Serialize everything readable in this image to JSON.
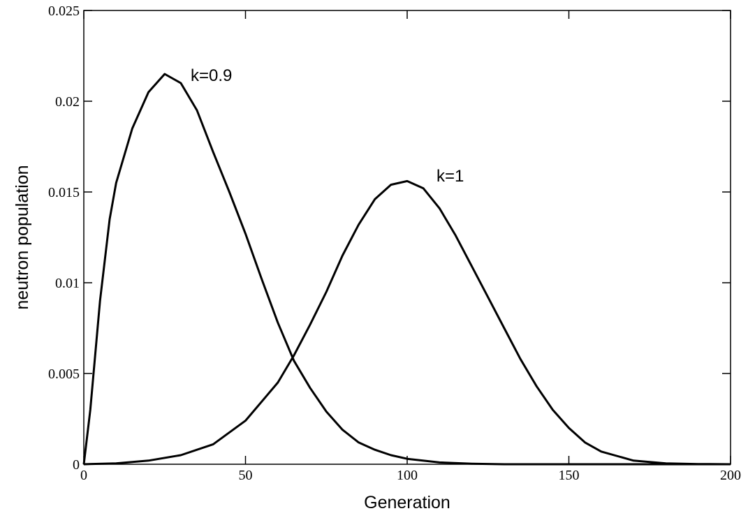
{
  "chart_data": {
    "type": "line",
    "x_label": "Generation",
    "y_label": "neutron population",
    "annotations": [
      "k=0.9",
      "k=1"
    ],
    "xlim": [
      0,
      200
    ],
    "xticks": [
      0,
      50,
      100,
      150,
      200
    ],
    "ylim": [
      0,
      0.025
    ],
    "yticks": [
      0,
      0.005,
      0.01,
      0.015,
      0.02,
      0.025
    ],
    "series": [
      {
        "name": "k=0.9",
        "color": "#000000",
        "x": [
          0,
          2,
          5,
          8,
          10,
          15,
          20,
          25,
          30,
          35,
          40,
          45,
          50,
          55,
          60,
          65,
          70,
          75,
          80,
          85,
          90,
          95,
          100,
          110,
          120,
          130,
          200
        ],
        "values": [
          0,
          0.003,
          0.009,
          0.0135,
          0.0155,
          0.0185,
          0.0205,
          0.0215,
          0.021,
          0.0195,
          0.0172,
          0.015,
          0.0127,
          0.0102,
          0.0078,
          0.0057,
          0.0042,
          0.0029,
          0.0019,
          0.0012,
          0.0008,
          0.0005,
          0.0003,
          0.0001,
          3e-05,
          0,
          0
        ]
      },
      {
        "name": "k=1",
        "color": "#000000",
        "x": [
          0,
          10,
          20,
          30,
          40,
          50,
          60,
          65,
          70,
          75,
          80,
          85,
          90,
          95,
          100,
          105,
          110,
          115,
          120,
          125,
          130,
          135,
          140,
          145,
          150,
          155,
          160,
          170,
          180,
          190,
          200
        ],
        "values": [
          0,
          5e-05,
          0.0002,
          0.0005,
          0.0011,
          0.0024,
          0.0045,
          0.006,
          0.0077,
          0.0095,
          0.0115,
          0.0132,
          0.0146,
          0.0154,
          0.0156,
          0.0152,
          0.0141,
          0.0126,
          0.0109,
          0.0092,
          0.0075,
          0.0058,
          0.0043,
          0.003,
          0.002,
          0.0012,
          0.0007,
          0.0002,
          5e-05,
          1e-05,
          0
        ]
      }
    ]
  }
}
